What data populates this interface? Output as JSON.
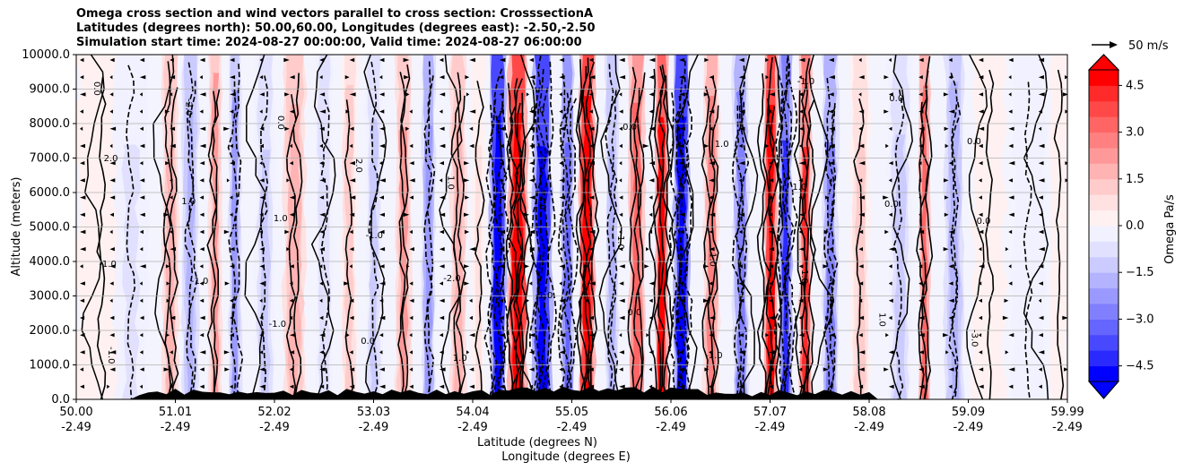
{
  "chart_data": {
    "type": "contour",
    "title_lines": [
      "Omega cross section and wind vectors parallel to cross section: CrosssectionA",
      "Latitudes (degrees north): 50.00,60.00, Longitudes (degrees east): -2.50,-2.50",
      "Simulation start time: 2024-08-27 00:00:00, Valid time: 2024-08-27 06:00:00"
    ],
    "xlabel_lines": [
      "Latitude (degrees N)",
      "Longitude (degrees E)"
    ],
    "ylabel": "Altitude (meters)",
    "x_ticks": [
      {
        "lat": "50.00",
        "lon": "-2.49"
      },
      {
        "lat": "51.01",
        "lon": "-2.49"
      },
      {
        "lat": "52.02",
        "lon": "-2.49"
      },
      {
        "lat": "53.03",
        "lon": "-2.49"
      },
      {
        "lat": "54.04",
        "lon": "-2.49"
      },
      {
        "lat": "55.05",
        "lon": "-2.49"
      },
      {
        "lat": "56.06",
        "lon": "-2.49"
      },
      {
        "lat": "57.07",
        "lon": "-2.49"
      },
      {
        "lat": "58.08",
        "lon": "-2.49"
      },
      {
        "lat": "59.09",
        "lon": "-2.49"
      },
      {
        "lat": "59.99",
        "lon": "-2.49"
      }
    ],
    "y_ticks": [
      "0.0",
      "1000.0",
      "2000.0",
      "3000.0",
      "4000.0",
      "5000.0",
      "6000.0",
      "7000.0",
      "8000.0",
      "9000.0",
      "10000.0"
    ],
    "ylim": [
      0,
      10000
    ],
    "xlim": [
      50.0,
      59.99
    ],
    "grid": "horizontal",
    "colorbar": {
      "label": "Omega Pa/s",
      "range": [
        -5.0,
        5.0
      ],
      "ticks": [
        "4.5",
        "3.0",
        "1.5",
        "0.0",
        "−1.5",
        "−3.0",
        "−4.5"
      ],
      "tick_values": [
        4.5,
        3.0,
        1.5,
        0.0,
        -1.5,
        -3.0,
        -4.5
      ],
      "extend": "both",
      "colors": [
        "#0000ff",
        "#2a2aff",
        "#4848ff",
        "#6565ff",
        "#8080ff",
        "#9999ff",
        "#b3b3ff",
        "#cbcbff",
        "#e1e1ff",
        "#f1f1ff",
        "#fff1f1",
        "#ffe1e1",
        "#ffcbcb",
        "#ffb3b3",
        "#ff9999",
        "#ff8080",
        "#ff6565",
        "#ff4848",
        "#ff2a2a",
        "#ff0000"
      ]
    },
    "quiver_key": {
      "label": "50 m/s",
      "value": 50
    },
    "contour_labels": [
      "0.0",
      "1.0",
      "-1.0",
      "2.0",
      "-2.0",
      "0.0",
      "1.0",
      "-1.0",
      "1.0",
      "1.0",
      "0.0",
      "-1.0",
      "-2.0",
      "1.0",
      "0.0",
      "1.0",
      "-1.0",
      "0.0",
      "1.0",
      "-1.0",
      "0.0",
      "-3.0",
      "2.0",
      "-1.0",
      "0.0",
      "-1.0",
      "1.0",
      "-1.0",
      "0.0",
      "1.0",
      "1.0",
      "0.0",
      "0.0",
      "-1.0"
    ],
    "omega_bands": [
      {
        "lat": 50.25,
        "omega": 0.4,
        "w": 0.3
      },
      {
        "lat": 50.55,
        "omega": -0.6,
        "w": 0.2
      },
      {
        "lat": 50.95,
        "omega": 1.8,
        "w": 0.1
      },
      {
        "lat": 51.15,
        "omega": -1.6,
        "w": 0.1
      },
      {
        "lat": 51.4,
        "omega": 2.0,
        "w": 0.08
      },
      {
        "lat": 51.6,
        "omega": -2.2,
        "w": 0.08
      },
      {
        "lat": 51.9,
        "omega": -1.2,
        "w": 0.12
      },
      {
        "lat": 52.2,
        "omega": 1.8,
        "w": 0.14
      },
      {
        "lat": 52.5,
        "omega": -1.0,
        "w": 0.1
      },
      {
        "lat": 52.75,
        "omega": 1.2,
        "w": 0.1
      },
      {
        "lat": 53.0,
        "omega": -1.4,
        "w": 0.1
      },
      {
        "lat": 53.3,
        "omega": 2.2,
        "w": 0.1
      },
      {
        "lat": 53.55,
        "omega": -2.4,
        "w": 0.08
      },
      {
        "lat": 53.85,
        "omega": 1.6,
        "w": 0.1
      },
      {
        "lat": 54.05,
        "omega": 0.6,
        "w": 0.08
      },
      {
        "lat": 54.25,
        "omega": -5.5,
        "w": 0.1
      },
      {
        "lat": 54.45,
        "omega": 5.5,
        "w": 0.12
      },
      {
        "lat": 54.7,
        "omega": -5.5,
        "w": 0.12
      },
      {
        "lat": 54.95,
        "omega": -3.5,
        "w": 0.08
      },
      {
        "lat": 55.15,
        "omega": 5.5,
        "w": 0.1
      },
      {
        "lat": 55.4,
        "omega": -2.0,
        "w": 0.08
      },
      {
        "lat": 55.65,
        "omega": 3.2,
        "w": 0.1
      },
      {
        "lat": 55.9,
        "omega": 4.8,
        "w": 0.08
      },
      {
        "lat": 56.1,
        "omega": -5.5,
        "w": 0.1
      },
      {
        "lat": 56.4,
        "omega": 2.6,
        "w": 0.1
      },
      {
        "lat": 56.7,
        "omega": -2.8,
        "w": 0.1
      },
      {
        "lat": 57.0,
        "omega": 5.5,
        "w": 0.08
      },
      {
        "lat": 57.15,
        "omega": -4.5,
        "w": 0.08
      },
      {
        "lat": 57.35,
        "omega": 4.0,
        "w": 0.08
      },
      {
        "lat": 57.6,
        "omega": -2.8,
        "w": 0.1
      },
      {
        "lat": 57.9,
        "omega": 1.2,
        "w": 0.12
      },
      {
        "lat": 58.3,
        "omega": -1.2,
        "w": 0.14
      },
      {
        "lat": 58.55,
        "omega": 3.0,
        "w": 0.06
      },
      {
        "lat": 58.85,
        "omega": -1.6,
        "w": 0.12
      },
      {
        "lat": 59.2,
        "omega": 0.4,
        "w": 0.2
      },
      {
        "lat": 59.6,
        "omega": -0.4,
        "w": 0.2
      },
      {
        "lat": 59.9,
        "omega": 0.3,
        "w": 0.1
      }
    ]
  }
}
